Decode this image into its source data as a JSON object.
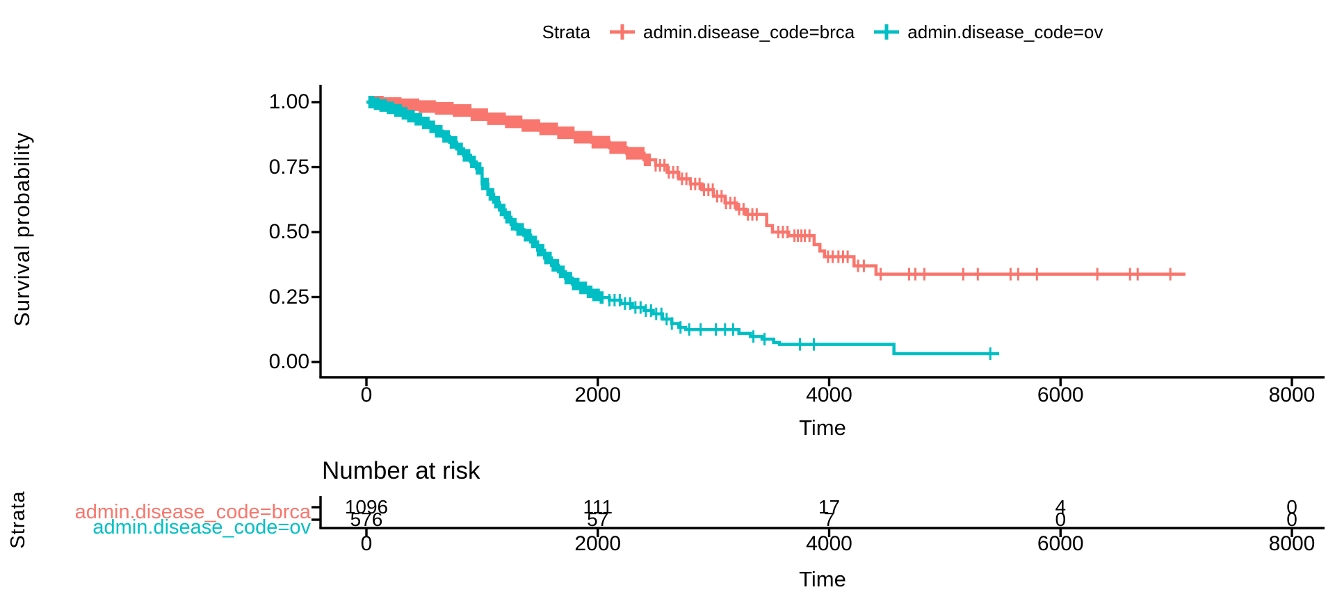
{
  "legend_title": "Strata",
  "risk_ylabel": "Strata",
  "colors": {
    "brca": "#F8766D",
    "ov": "#00BFC4",
    "axis": "#000000",
    "background": "#FFFFFF"
  },
  "chart_data": {
    "type": "line",
    "subtype": "kaplan-meier-step-curves",
    "title": "",
    "xlabel": "Time",
    "ylabel": "Survival probability",
    "xlim": [
      0,
      8000
    ],
    "ylim": [
      0,
      1
    ],
    "x_ticks": [
      0,
      2000,
      4000,
      6000,
      8000
    ],
    "y_ticks": [
      0,
      0.25,
      0.5,
      0.75,
      1
    ],
    "y_tick_labels": [
      "0.00",
      "0.25",
      "0.50",
      "0.75",
      "1.00"
    ],
    "legend_position": "top",
    "grid": false,
    "series": [
      {
        "name": "admin.disease_code=brca",
        "color": "#F8766D",
        "points": [
          [
            0,
            1
          ],
          [
            150,
            0.995
          ],
          [
            300,
            0.99
          ],
          [
            450,
            0.983
          ],
          [
            600,
            0.976
          ],
          [
            750,
            0.968
          ],
          [
            900,
            0.952
          ],
          [
            1050,
            0.936
          ],
          [
            1200,
            0.924
          ],
          [
            1350,
            0.91
          ],
          [
            1500,
            0.897
          ],
          [
            1650,
            0.882
          ],
          [
            1800,
            0.865
          ],
          [
            1950,
            0.846
          ],
          [
            2100,
            0.825
          ],
          [
            2250,
            0.803
          ],
          [
            2400,
            0.778
          ],
          [
            2500,
            0.757
          ],
          [
            2600,
            0.73
          ],
          [
            2700,
            0.705
          ],
          [
            2800,
            0.685
          ],
          [
            2900,
            0.663
          ],
          [
            3000,
            0.638
          ],
          [
            3100,
            0.612
          ],
          [
            3200,
            0.588
          ],
          [
            3280,
            0.568
          ],
          [
            3420,
            0.568
          ],
          [
            3460,
            0.525
          ],
          [
            3510,
            0.5
          ],
          [
            3620,
            0.5
          ],
          [
            3650,
            0.486
          ],
          [
            3820,
            0.486
          ],
          [
            3870,
            0.452
          ],
          [
            3920,
            0.427
          ],
          [
            3960,
            0.405
          ],
          [
            4200,
            0.405
          ],
          [
            4215,
            0.37
          ],
          [
            4390,
            0.37
          ],
          [
            4405,
            0.338
          ],
          [
            7080,
            0.338
          ]
        ],
        "censor_dense": [
          {
            "from": 30,
            "to": 2450,
            "step": 11
          },
          {
            "from": 2500,
            "to": 3400,
            "step": 38
          }
        ],
        "censor_times": [
          3560,
          3600,
          3640,
          3700,
          3730,
          3760,
          3790,
          3830,
          3990,
          4030,
          4080,
          4120,
          4160,
          4250,
          4300,
          4445,
          4691,
          4745,
          4823,
          5159,
          5285,
          5568,
          5634,
          5796,
          6318,
          6601,
          6667,
          6949
        ]
      },
      {
        "name": "admin.disease_code=ov",
        "color": "#00BFC4",
        "points": [
          [
            0,
            1
          ],
          [
            60,
            0.994
          ],
          [
            120,
            0.987
          ],
          [
            180,
            0.978
          ],
          [
            240,
            0.968
          ],
          [
            300,
            0.957
          ],
          [
            360,
            0.946
          ],
          [
            420,
            0.934
          ],
          [
            480,
            0.92
          ],
          [
            540,
            0.905
          ],
          [
            600,
            0.888
          ],
          [
            660,
            0.868
          ],
          [
            720,
            0.845
          ],
          [
            780,
            0.82
          ],
          [
            840,
            0.795
          ],
          [
            900,
            0.77
          ],
          [
            950,
            0.745
          ],
          [
            1000,
            0.685
          ],
          [
            1050,
            0.645
          ],
          [
            1100,
            0.615
          ],
          [
            1150,
            0.585
          ],
          [
            1200,
            0.557
          ],
          [
            1250,
            0.53
          ],
          [
            1300,
            0.51
          ],
          [
            1360,
            0.488
          ],
          [
            1420,
            0.462
          ],
          [
            1480,
            0.43
          ],
          [
            1540,
            0.4
          ],
          [
            1600,
            0.372
          ],
          [
            1660,
            0.347
          ],
          [
            1720,
            0.323
          ],
          [
            1780,
            0.3
          ],
          [
            1840,
            0.285
          ],
          [
            1900,
            0.27
          ],
          [
            1960,
            0.258
          ],
          [
            2020,
            0.248
          ],
          [
            2100,
            0.238
          ],
          [
            2200,
            0.225
          ],
          [
            2300,
            0.21
          ],
          [
            2400,
            0.198
          ],
          [
            2480,
            0.185
          ],
          [
            2560,
            0.165
          ],
          [
            2640,
            0.148
          ],
          [
            2700,
            0.133
          ],
          [
            2760,
            0.125
          ],
          [
            3140,
            0.125
          ],
          [
            3220,
            0.11
          ],
          [
            3320,
            0.098
          ],
          [
            3420,
            0.088
          ],
          [
            3520,
            0.075
          ],
          [
            3570,
            0.068
          ],
          [
            4530,
            0.068
          ],
          [
            4560,
            0.032
          ],
          [
            5470,
            0.032
          ]
        ],
        "censor_dense": [
          {
            "from": 25,
            "to": 2050,
            "step": 16
          },
          {
            "from": 2100,
            "to": 2640,
            "step": 45
          }
        ],
        "censor_times": [
          2715,
          2790,
          2889,
          3021,
          3100,
          3170,
          3345,
          3441,
          3748,
          3868,
          5393
        ]
      }
    ],
    "risk_table": {
      "title": "Number at risk",
      "times": [
        0,
        2000,
        4000,
        6000,
        8000
      ],
      "rows": [
        {
          "name": "admin.disease_code=brca",
          "counts": [
            1096,
            111,
            17,
            4,
            0
          ]
        },
        {
          "name": "admin.disease_code=ov",
          "counts": [
            576,
            57,
            7,
            0,
            0
          ]
        }
      ]
    }
  }
}
